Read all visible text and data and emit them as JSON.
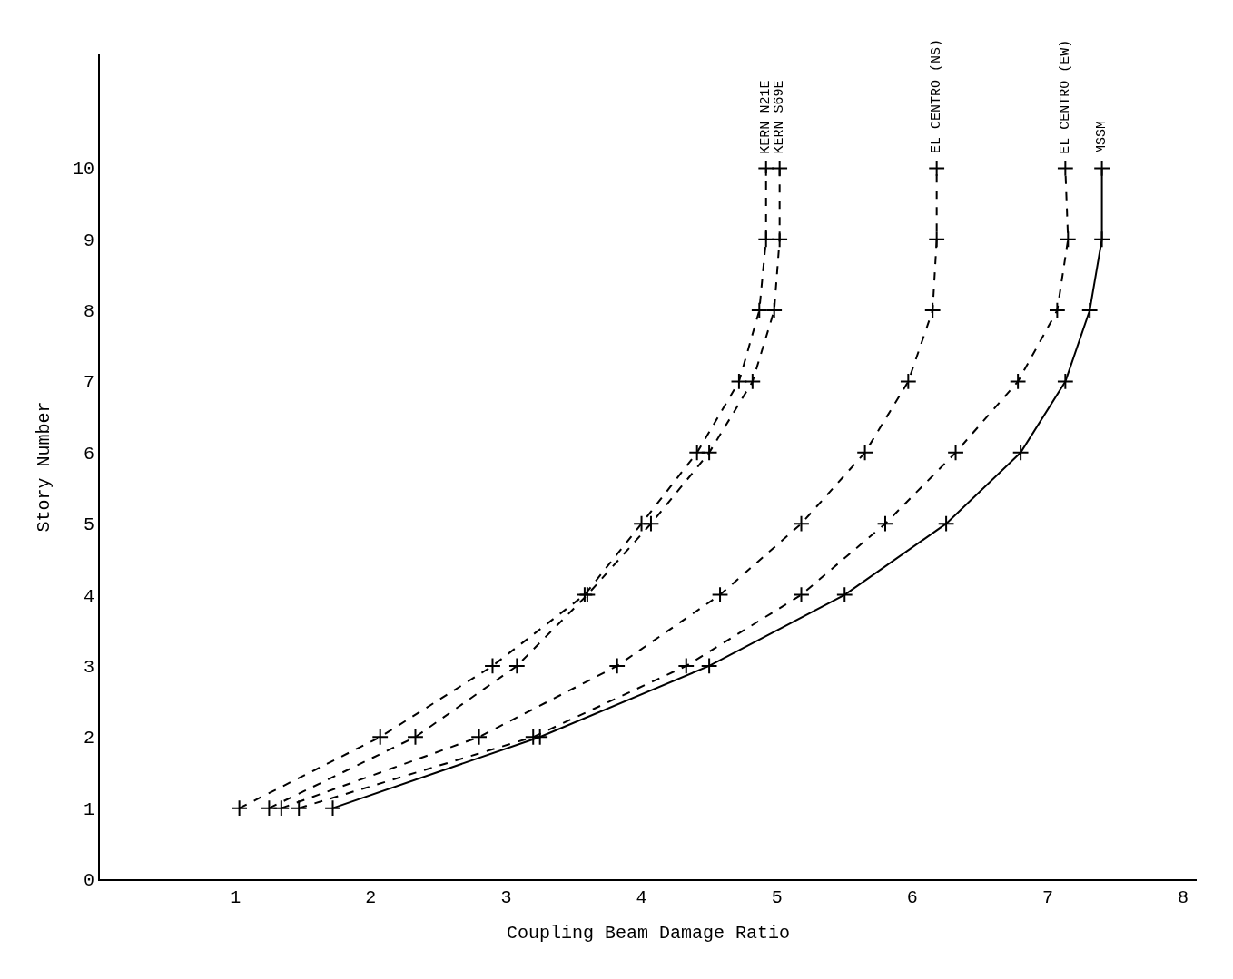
{
  "chart_data": {
    "type": "line",
    "xlabel": "Coupling Beam Damage Ratio",
    "ylabel": "Story Number",
    "x": [
      1,
      2,
      3,
      4,
      5,
      6,
      7,
      8,
      9,
      10
    ],
    "orientation": "horizontal",
    "xlim": [
      0,
      8.1
    ],
    "xticks": [
      1,
      2,
      3,
      4,
      5,
      6,
      7,
      8
    ],
    "ylim": [
      0,
      11.6
    ],
    "yticks": [
      0,
      1,
      2,
      3,
      4,
      5,
      6,
      7,
      8,
      9,
      10
    ],
    "grid": false,
    "legend": false,
    "marker": "cross",
    "series": [
      {
        "name": "KERN N21E",
        "color": "#000000",
        "line_style": "dashed",
        "values": [
          1.03,
          2.07,
          2.9,
          3.58,
          4.0,
          4.41,
          4.72,
          4.87,
          4.92,
          4.92
        ]
      },
      {
        "name": "KERN S69E",
        "color": "#000000",
        "line_style": "dashed",
        "values": [
          1.25,
          2.33,
          3.08,
          3.6,
          4.07,
          4.5,
          4.82,
          4.98,
          5.02,
          5.02
        ]
      },
      {
        "name": "EL CENTRO (NS)",
        "color": "#000000",
        "line_style": "dashed",
        "values": [
          1.34,
          2.8,
          3.82,
          4.58,
          5.18,
          5.65,
          5.97,
          6.15,
          6.18,
          6.18
        ]
      },
      {
        "name": "EL CENTRO (EW)",
        "color": "#000000",
        "line_style": "dashed",
        "values": [
          1.47,
          3.2,
          4.33,
          5.18,
          5.8,
          6.32,
          6.78,
          7.07,
          7.15,
          7.13
        ]
      },
      {
        "name": "MSSM",
        "color": "#000000",
        "line_style": "solid",
        "values": [
          1.72,
          3.25,
          4.5,
          5.5,
          6.25,
          6.8,
          7.13,
          7.31,
          7.4,
          7.4
        ]
      }
    ]
  }
}
